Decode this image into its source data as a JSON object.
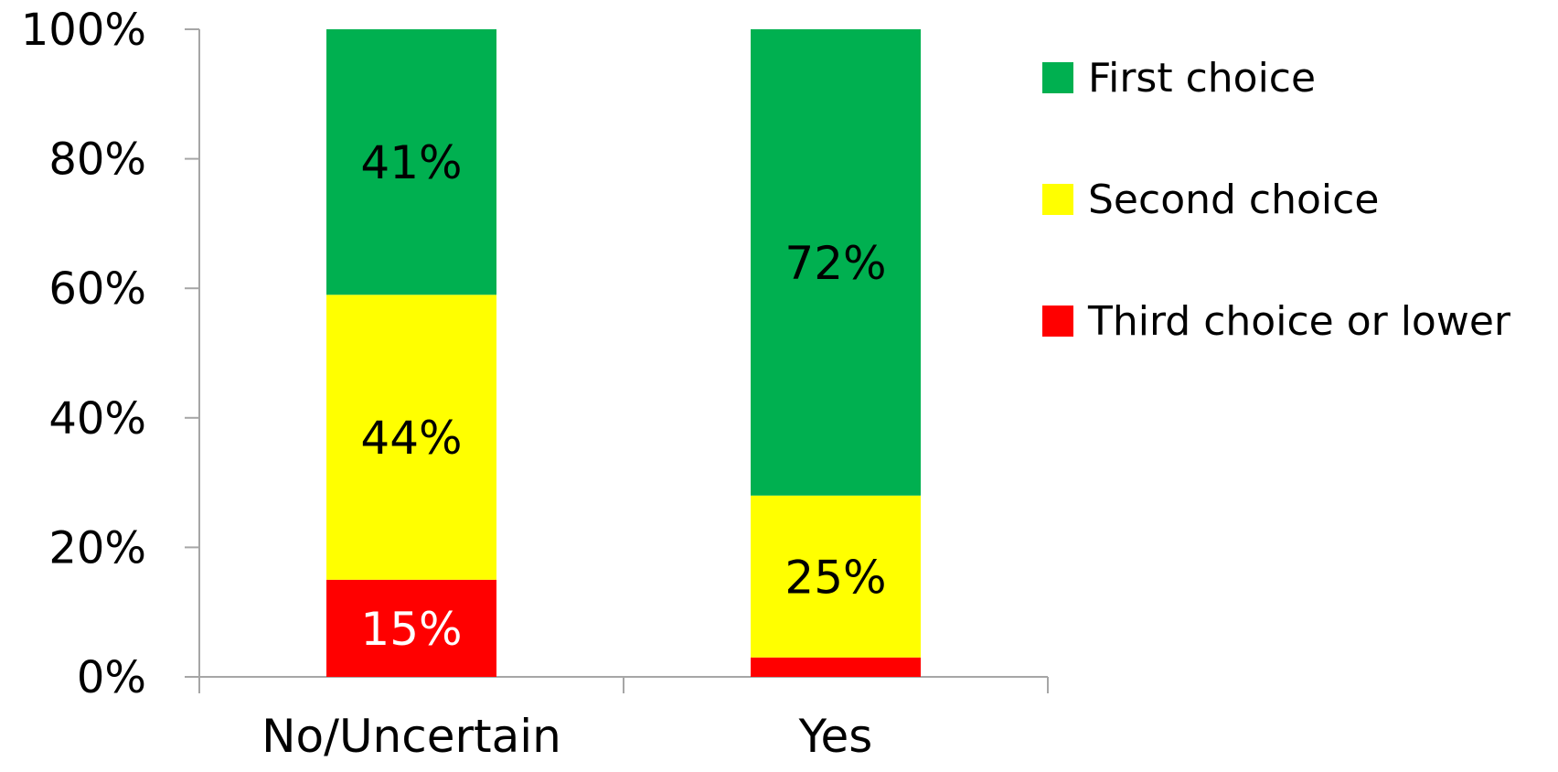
{
  "chart_data": {
    "type": "bar",
    "stacked": true,
    "categories": [
      "No/Uncertain",
      "Yes"
    ],
    "series": [
      {
        "name": "Third choice or lower",
        "values": [
          15,
          3
        ],
        "labels": [
          "15%",
          ""
        ],
        "color": "#ff0000",
        "label_color": "#ffffff"
      },
      {
        "name": "Second choice",
        "values": [
          44,
          25
        ],
        "labels": [
          "44%",
          "25%"
        ],
        "color": "#ffff00",
        "label_color": "#000000"
      },
      {
        "name": "First choice",
        "values": [
          41,
          72
        ],
        "labels": [
          "41%",
          "72%"
        ],
        "color": "#00b050",
        "label_color": "#000000"
      }
    ],
    "y_ticks": [
      "0%",
      "20%",
      "40%",
      "60%",
      "80%",
      "100%"
    ],
    "ylim": [
      0,
      100
    ],
    "title": "",
    "xlabel": "",
    "ylabel": "",
    "grid": false,
    "legend": {
      "position": "right",
      "entries": [
        "First choice",
        "Second choice",
        "Third choice or lower"
      ]
    },
    "axis_color": "#a6a6a6"
  }
}
